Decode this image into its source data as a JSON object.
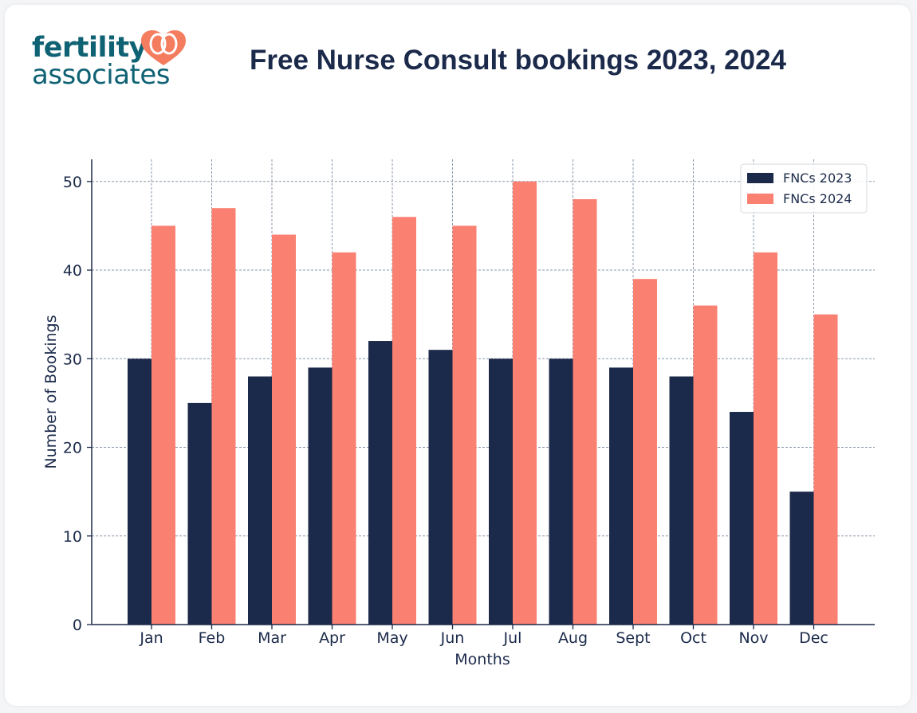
{
  "brand": {
    "line1": "fertility",
    "line2": "associates",
    "logo_icon": "heart-icon",
    "color_text": "#0f6273",
    "color_heart": "#f47c5f"
  },
  "colors": {
    "series_2023": "#1b2a4a",
    "series_2024": "#fa8072",
    "axis": "#1b2a4a",
    "grid": "#8a97a8"
  },
  "chart_data": {
    "type": "bar",
    "title": "Free Nurse Consult bookings 2023, 2024",
    "xlabel": "Months",
    "ylabel": "Number of Bookings",
    "categories": [
      "Jan",
      "Feb",
      "Mar",
      "Apr",
      "May",
      "Jun",
      "Jul",
      "Aug",
      "Sept",
      "Oct",
      "Nov",
      "Dec"
    ],
    "series": [
      {
        "name": "FNCs 2023",
        "values": [
          30,
          25,
          28,
          29,
          32,
          31,
          30,
          30,
          29,
          28,
          24,
          15
        ]
      },
      {
        "name": "FNCs 2024",
        "values": [
          45,
          47,
          44,
          42,
          46,
          45,
          50,
          48,
          39,
          36,
          42,
          35
        ]
      }
    ],
    "ylim": [
      0,
      52.5
    ],
    "yticks": [
      0,
      10,
      20,
      30,
      40,
      50
    ],
    "grid": true,
    "legend_position": "top-right"
  }
}
